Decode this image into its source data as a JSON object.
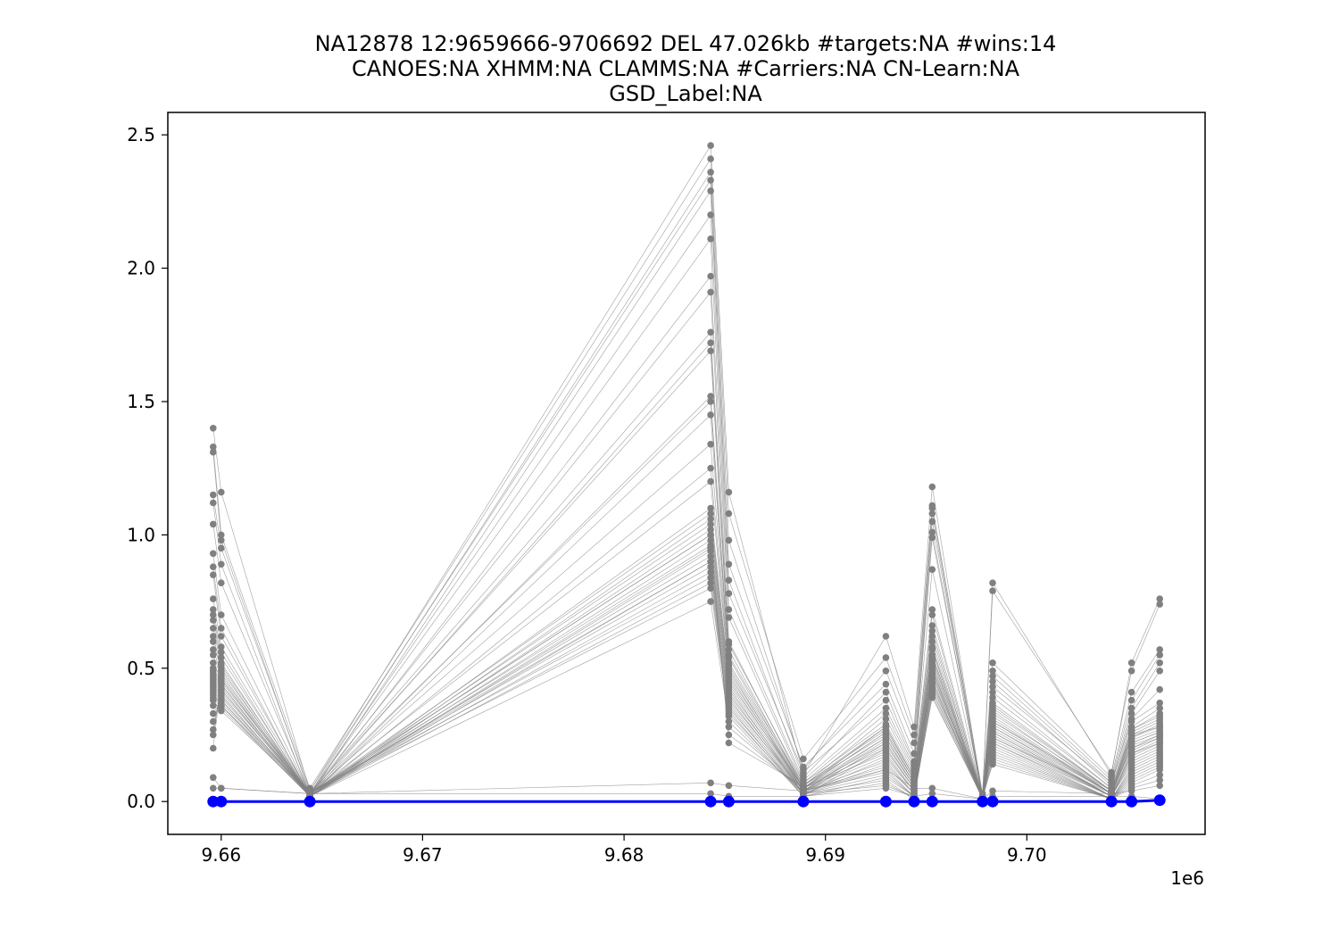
{
  "chart_data": {
    "type": "line",
    "title_lines": [
      "NA12878 12:9659666-9706692 DEL 47.026kb #targets:NA #wins:14",
      "CANOES:NA XHMM:NA CLAMMS:NA #Carriers:NA CN-Learn:NA",
      "GSD_Label:NA"
    ],
    "xlabel": "",
    "ylabel": "",
    "x_offset_label": "1e6",
    "x_ticks": [
      9.66,
      9.67,
      9.68,
      9.69,
      9.7
    ],
    "x_tick_labels": [
      "9.66",
      "9.67",
      "9.68",
      "9.69",
      "9.70"
    ],
    "y_ticks": [
      0.0,
      0.5,
      1.0,
      1.5,
      2.0,
      2.5
    ],
    "y_tick_labels": [
      "0.0",
      "0.5",
      "1.0",
      "1.5",
      "2.0",
      "2.5"
    ],
    "xlim": [
      9.65735,
      9.70885
    ],
    "ylim": [
      -0.123,
      2.584
    ],
    "grid": false,
    "legend": "none",
    "window_x": [
      9.6596,
      9.66,
      9.6644,
      9.6843,
      9.6852,
      9.6889,
      9.693,
      9.6944,
      9.6953,
      9.6978,
      9.6983,
      9.7042,
      9.7052,
      9.7066
    ],
    "highlight_series": {
      "color": "#0000ff",
      "y": [
        0.0,
        0.0,
        0.0,
        0.0,
        0.0,
        0.0,
        0.0,
        0.0,
        0.0,
        0.0,
        0.0,
        0.0,
        0.0,
        0.005
      ]
    },
    "background_series_color": "#808080",
    "background_series": [
      [
        1.4,
        1.16,
        0.04,
        2.46,
        1.16,
        0.1,
        0.62,
        0.28,
        1.18,
        0.02,
        0.82,
        0.1,
        0.52,
        0.76
      ],
      [
        1.33,
        1.0,
        0.05,
        2.41,
        1.08,
        0.16,
        0.54,
        0.25,
        1.11,
        0.03,
        0.79,
        0.11,
        0.49,
        0.74
      ],
      [
        1.31,
        0.98,
        0.03,
        2.36,
        0.98,
        0.12,
        0.49,
        0.22,
        1.1,
        0.02,
        0.52,
        0.09,
        0.41,
        0.57
      ],
      [
        1.15,
        0.95,
        0.04,
        2.33,
        0.89,
        0.13,
        0.44,
        0.18,
        1.08,
        0.01,
        0.49,
        0.08,
        0.38,
        0.55
      ],
      [
        1.12,
        0.89,
        0.02,
        2.29,
        0.83,
        0.09,
        0.41,
        0.15,
        1.05,
        0.02,
        0.47,
        0.07,
        0.35,
        0.52
      ],
      [
        1.04,
        0.82,
        0.03,
        2.2,
        0.78,
        0.11,
        0.38,
        0.14,
        1.01,
        0.01,
        0.45,
        0.06,
        0.33,
        0.49
      ],
      [
        0.93,
        0.7,
        0.03,
        2.11,
        0.72,
        0.08,
        0.35,
        0.13,
        0.99,
        0.02,
        0.43,
        0.07,
        0.31,
        0.42
      ],
      [
        0.88,
        0.65,
        0.02,
        1.97,
        0.69,
        0.07,
        0.33,
        0.12,
        0.87,
        0.01,
        0.41,
        0.05,
        0.3,
        0.37
      ],
      [
        0.85,
        0.62,
        0.03,
        1.91,
        0.6,
        0.06,
        0.31,
        0.11,
        0.72,
        0.02,
        0.39,
        0.05,
        0.28,
        0.35
      ],
      [
        0.76,
        0.58,
        0.03,
        1.76,
        0.59,
        0.07,
        0.29,
        0.1,
        0.7,
        0.01,
        0.37,
        0.04,
        0.27,
        0.33
      ],
      [
        0.72,
        0.56,
        0.02,
        1.72,
        0.57,
        0.05,
        0.28,
        0.09,
        0.66,
        0.02,
        0.36,
        0.04,
        0.26,
        0.31
      ],
      [
        0.7,
        0.54,
        0.03,
        1.69,
        0.55,
        0.06,
        0.27,
        0.09,
        0.64,
        0.01,
        0.35,
        0.04,
        0.25,
        0.3
      ],
      [
        0.68,
        0.52,
        0.02,
        1.52,
        0.54,
        0.05,
        0.26,
        0.08,
        0.62,
        0.02,
        0.34,
        0.03,
        0.24,
        0.29
      ],
      [
        0.65,
        0.51,
        0.03,
        1.5,
        0.52,
        0.06,
        0.25,
        0.08,
        0.6,
        0.01,
        0.33,
        0.04,
        0.24,
        0.28
      ],
      [
        0.62,
        0.5,
        0.02,
        1.45,
        0.51,
        0.05,
        0.24,
        0.07,
        0.58,
        0.02,
        0.32,
        0.03,
        0.23,
        0.27
      ],
      [
        0.6,
        0.49,
        0.03,
        1.34,
        0.5,
        0.04,
        0.23,
        0.07,
        0.57,
        0.01,
        0.31,
        0.03,
        0.22,
        0.26
      ],
      [
        0.57,
        0.48,
        0.02,
        1.25,
        0.49,
        0.05,
        0.22,
        0.06,
        0.55,
        0.02,
        0.3,
        0.03,
        0.21,
        0.25
      ],
      [
        0.55,
        0.47,
        0.03,
        1.2,
        0.48,
        0.04,
        0.21,
        0.06,
        0.54,
        0.01,
        0.29,
        0.03,
        0.2,
        0.25
      ],
      [
        0.52,
        0.46,
        0.02,
        1.1,
        0.47,
        0.05,
        0.2,
        0.05,
        0.53,
        0.02,
        0.28,
        0.02,
        0.19,
        0.24
      ],
      [
        0.5,
        0.45,
        0.03,
        1.08,
        0.46,
        0.04,
        0.19,
        0.05,
        0.52,
        0.01,
        0.27,
        0.02,
        0.18,
        0.23
      ],
      [
        0.49,
        0.44,
        0.02,
        1.06,
        0.45,
        0.05,
        0.18,
        0.04,
        0.51,
        0.02,
        0.26,
        0.02,
        0.17,
        0.22
      ],
      [
        0.48,
        0.43,
        0.03,
        1.04,
        0.44,
        0.04,
        0.17,
        0.04,
        0.5,
        0.01,
        0.25,
        0.02,
        0.16,
        0.21
      ],
      [
        0.47,
        0.42,
        0.02,
        1.02,
        0.43,
        0.03,
        0.16,
        0.04,
        0.49,
        0.02,
        0.24,
        0.02,
        0.15,
        0.2
      ],
      [
        0.46,
        0.41,
        0.03,
        1.0,
        0.42,
        0.04,
        0.15,
        0.03,
        0.48,
        0.01,
        0.23,
        0.02,
        0.14,
        0.19
      ],
      [
        0.45,
        0.4,
        0.02,
        0.98,
        0.41,
        0.03,
        0.14,
        0.03,
        0.47,
        0.02,
        0.22,
        0.01,
        0.13,
        0.18
      ],
      [
        0.44,
        0.39,
        0.03,
        0.96,
        0.4,
        0.04,
        0.13,
        0.03,
        0.46,
        0.01,
        0.21,
        0.01,
        0.12,
        0.17
      ],
      [
        0.43,
        0.38,
        0.02,
        0.94,
        0.39,
        0.03,
        0.12,
        0.02,
        0.45,
        0.02,
        0.2,
        0.01,
        0.11,
        0.16
      ],
      [
        0.42,
        0.37,
        0.03,
        0.92,
        0.38,
        0.04,
        0.11,
        0.02,
        0.44,
        0.01,
        0.19,
        0.01,
        0.1,
        0.15
      ],
      [
        0.41,
        0.36,
        0.02,
        0.9,
        0.37,
        0.03,
        0.1,
        0.02,
        0.43,
        0.02,
        0.18,
        0.01,
        0.09,
        0.14
      ],
      [
        0.4,
        0.36,
        0.03,
        0.88,
        0.36,
        0.02,
        0.09,
        0.02,
        0.42,
        0.01,
        0.17,
        0.01,
        0.08,
        0.13
      ],
      [
        0.39,
        0.35,
        0.02,
        0.86,
        0.35,
        0.03,
        0.08,
        0.01,
        0.41,
        0.02,
        0.16,
        0.01,
        0.07,
        0.12
      ],
      [
        0.38,
        0.34,
        0.03,
        0.84,
        0.34,
        0.02,
        0.07,
        0.01,
        0.4,
        0.01,
        0.15,
        0.01,
        0.06,
        0.1
      ],
      [
        0.36,
        0.36,
        0.02,
        0.82,
        0.33,
        0.03,
        0.06,
        0.02,
        0.39,
        0.02,
        0.14,
        0.01,
        0.05,
        0.08
      ],
      [
        0.33,
        0.38,
        0.03,
        0.8,
        0.32,
        0.02,
        0.2,
        0.05,
        0.45,
        0.01,
        0.22,
        0.02,
        0.18,
        0.22
      ],
      [
        0.3,
        0.4,
        0.02,
        0.75,
        0.3,
        0.03,
        0.22,
        0.06,
        0.48,
        0.02,
        0.24,
        0.03,
        0.2,
        0.24
      ],
      [
        0.27,
        0.42,
        0.03,
        0.9,
        0.28,
        0.04,
        0.24,
        0.07,
        0.5,
        0.01,
        0.26,
        0.02,
        0.22,
        0.26
      ],
      [
        0.25,
        0.44,
        0.02,
        0.95,
        0.25,
        0.05,
        0.26,
        0.08,
        0.55,
        0.02,
        0.28,
        0.03,
        0.25,
        0.28
      ],
      [
        0.2,
        0.46,
        0.03,
        1.0,
        0.22,
        0.06,
        0.28,
        0.09,
        0.57,
        0.01,
        0.3,
        0.04,
        0.27,
        0.32
      ],
      [
        0.09,
        0.05,
        0.03,
        0.07,
        0.06,
        0.04,
        0.12,
        0.05,
        0.05,
        0.01,
        0.04,
        0.03,
        0.04,
        0.06
      ],
      [
        0.05,
        0.05,
        0.03,
        0.03,
        0.02,
        0.02,
        0.05,
        0.02,
        0.03,
        0.01,
        0.02,
        0.02,
        0.02,
        0.01
      ]
    ]
  }
}
